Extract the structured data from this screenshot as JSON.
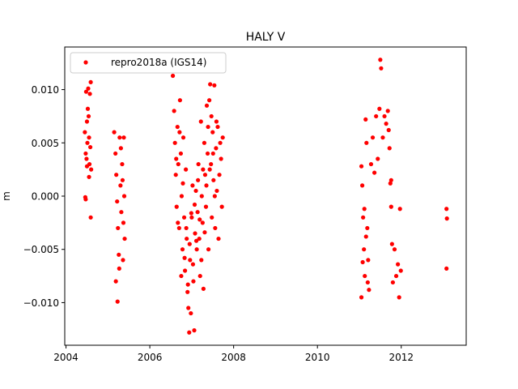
{
  "chart_data": {
    "type": "scatter",
    "title": "HALY V",
    "xlabel": "",
    "ylabel": "m",
    "xlim": [
      2003.97,
      2013.55
    ],
    "ylim": [
      -0.014,
      0.014
    ],
    "xticks": [
      2004,
      2006,
      2008,
      2010,
      2012
    ],
    "xtick_labels": [
      "2004",
      "2006",
      "2008",
      "2010",
      "2012"
    ],
    "yticks": [
      -0.01,
      -0.005,
      0.0,
      0.005,
      0.01
    ],
    "ytick_labels": [
      "−0.010",
      "−0.005",
      "0.000",
      "0.005",
      "0.010"
    ],
    "grid": false,
    "legend_position": "top-left",
    "series": [
      {
        "name": "repro2018a (IGS14)",
        "color": "#ff0000",
        "marker": "circle",
        "points": [
          [
            2004.45,
            0.006
          ],
          [
            2004.47,
            0.004
          ],
          [
            2004.48,
            0.0098
          ],
          [
            2004.49,
            0.0035
          ],
          [
            2004.5,
            0.0028
          ],
          [
            2004.51,
            0.005
          ],
          [
            2004.52,
            0.0082
          ],
          [
            2004.53,
            0.0101
          ],
          [
            2004.54,
            0.0075
          ],
          [
            2004.55,
            0.0055
          ],
          [
            2004.56,
            0.003
          ],
          [
            2004.57,
            0.0096
          ],
          [
            2004.58,
            0.0046
          ],
          [
            2004.59,
            0.0107
          ],
          [
            2004.6,
            0.0025
          ],
          [
            2004.46,
            -0.0001
          ],
          [
            2004.47,
            -0.0003
          ],
          [
            2004.59,
            -0.002
          ],
          [
            2004.5,
            0.007
          ],
          [
            2004.55,
            0.0018
          ],
          [
            2005.15,
            0.006
          ],
          [
            2005.18,
            0.004
          ],
          [
            2005.2,
            0.002
          ],
          [
            2005.22,
            -0.0005
          ],
          [
            2005.24,
            -0.003
          ],
          [
            2005.26,
            -0.0055
          ],
          [
            2005.28,
            0.0055
          ],
          [
            2005.3,
            0.001
          ],
          [
            2005.32,
            -0.0015
          ],
          [
            2005.34,
            0.003
          ],
          [
            2005.36,
            -0.006
          ],
          [
            2005.38,
            0.0055
          ],
          [
            2005.4,
            -0.004
          ],
          [
            2005.19,
            -0.008
          ],
          [
            2005.23,
            -0.0099
          ],
          [
            2005.27,
            -0.0068
          ],
          [
            2005.31,
            0.0045
          ],
          [
            2005.35,
            0.0015
          ],
          [
            2005.37,
            -0.0025
          ],
          [
            2005.39,
            0.0
          ],
          [
            2006.55,
            0.0113
          ],
          [
            2006.58,
            0.008
          ],
          [
            2006.6,
            0.005
          ],
          [
            2006.62,
            0.002
          ],
          [
            2006.64,
            -0.001
          ],
          [
            2006.66,
            0.0065
          ],
          [
            2006.68,
            0.003
          ],
          [
            2006.7,
            -0.003
          ],
          [
            2006.72,
            0.009
          ],
          [
            2006.74,
            0.004
          ],
          [
            2006.76,
            0.0
          ],
          [
            2006.78,
            -0.005
          ],
          [
            2006.8,
            0.0055
          ],
          [
            2006.82,
            -0.002
          ],
          [
            2006.84,
            -0.007
          ],
          [
            2006.86,
            0.0025
          ],
          [
            2006.88,
            -0.004
          ],
          [
            2006.9,
            -0.009
          ],
          [
            2006.92,
            -0.0105
          ],
          [
            2006.94,
            -0.0128
          ],
          [
            2006.96,
            -0.006
          ],
          [
            2006.98,
            -0.011
          ],
          [
            2007.0,
            -0.002
          ],
          [
            2007.02,
            0.001
          ],
          [
            2007.04,
            -0.008
          ],
          [
            2007.06,
            -0.0126
          ],
          [
            2007.08,
            -0.0035
          ],
          [
            2007.1,
            0.0005
          ],
          [
            2007.12,
            -0.005
          ],
          [
            2007.14,
            -0.0015
          ],
          [
            2007.16,
            0.003
          ],
          [
            2007.18,
            -0.004
          ],
          [
            2007.2,
            -0.0075
          ],
          [
            2007.22,
            0.007
          ],
          [
            2007.24,
            0.0
          ],
          [
            2007.26,
            -0.0025
          ],
          [
            2007.28,
            -0.0087
          ],
          [
            2007.3,
            0.005
          ],
          [
            2007.32,
            0.002
          ],
          [
            2007.34,
            -0.001
          ],
          [
            2007.36,
            0.0085
          ],
          [
            2007.38,
            0.004
          ],
          [
            2007.4,
            -0.005
          ],
          [
            2007.42,
            0.009
          ],
          [
            2007.44,
            0.0105
          ],
          [
            2007.46,
            0.003
          ],
          [
            2007.48,
            -0.002
          ],
          [
            2007.5,
            0.006
          ],
          [
            2007.52,
            0.0015
          ],
          [
            2007.54,
            0.0104
          ],
          [
            2007.56,
            -0.003
          ],
          [
            2007.58,
            0.0045
          ],
          [
            2007.6,
            0.0005
          ],
          [
            2007.62,
            0.0065
          ],
          [
            2007.64,
            -0.004
          ],
          [
            2007.66,
            0.002
          ],
          [
            2007.68,
            0.005
          ],
          [
            2007.7,
            0.0035
          ],
          [
            2007.72,
            -0.001
          ],
          [
            2007.74,
            0.0055
          ],
          [
            2006.63,
            0.0035
          ],
          [
            2006.67,
            -0.0025
          ],
          [
            2006.71,
            0.006
          ],
          [
            2006.75,
            -0.0075
          ],
          [
            2006.79,
            0.0012
          ],
          [
            2006.83,
            -0.0058
          ],
          [
            2006.87,
            -0.003
          ],
          [
            2006.91,
            -0.0083
          ],
          [
            2006.95,
            -0.0045
          ],
          [
            2006.99,
            -0.0016
          ],
          [
            2007.03,
            -0.0064
          ],
          [
            2007.07,
            -0.0008
          ],
          [
            2007.11,
            -0.0042
          ],
          [
            2007.15,
            0.0015
          ],
          [
            2007.19,
            -0.0022
          ],
          [
            2007.23,
            -0.006
          ],
          [
            2007.27,
            0.0025
          ],
          [
            2007.31,
            -0.0034
          ],
          [
            2007.35,
            0.001
          ],
          [
            2007.39,
            0.0065
          ],
          [
            2007.43,
            0.0025
          ],
          [
            2007.47,
            0.0075
          ],
          [
            2007.51,
            0.004
          ],
          [
            2007.55,
            0.0
          ],
          [
            2007.59,
            0.007
          ],
          [
            2011.05,
            0.0028
          ],
          [
            2011.07,
            0.001
          ],
          [
            2011.09,
            -0.002
          ],
          [
            2011.11,
            -0.005
          ],
          [
            2011.13,
            -0.0075
          ],
          [
            2011.15,
            0.0072
          ],
          [
            2011.17,
            0.005
          ],
          [
            2011.19,
            -0.003
          ],
          [
            2011.21,
            -0.006
          ],
          [
            2011.23,
            -0.0088
          ],
          [
            2011.05,
            -0.0095
          ],
          [
            2011.08,
            -0.0062
          ],
          [
            2011.12,
            -0.0012
          ],
          [
            2011.16,
            -0.0038
          ],
          [
            2011.2,
            -0.0081
          ],
          [
            2011.28,
            0.003
          ],
          [
            2011.32,
            0.0055
          ],
          [
            2011.36,
            0.0022
          ],
          [
            2011.4,
            0.0075
          ],
          [
            2011.44,
            0.0035
          ],
          [
            2011.48,
            0.0082
          ],
          [
            2011.5,
            0.0128
          ],
          [
            2011.52,
            0.012
          ],
          [
            2011.56,
            0.0055
          ],
          [
            2011.6,
            0.0075
          ],
          [
            2011.64,
            0.0068
          ],
          [
            2011.68,
            0.008
          ],
          [
            2011.72,
            0.0045
          ],
          [
            2011.74,
            0.0012
          ],
          [
            2011.76,
            -0.001
          ],
          [
            2011.78,
            -0.0045
          ],
          [
            2011.8,
            -0.0081
          ],
          [
            2011.84,
            -0.005
          ],
          [
            2011.88,
            -0.0075
          ],
          [
            2011.92,
            -0.0064
          ],
          [
            2011.95,
            -0.0095
          ],
          [
            2011.97,
            -0.0012
          ],
          [
            2011.99,
            -0.007
          ],
          [
            2011.7,
            0.0062
          ],
          [
            2011.76,
            0.0015
          ],
          [
            2013.08,
            -0.0012
          ],
          [
            2013.09,
            -0.0021
          ],
          [
            2013.08,
            -0.0068
          ]
        ]
      }
    ]
  }
}
